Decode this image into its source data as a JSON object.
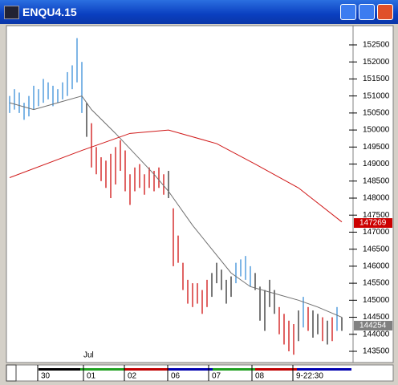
{
  "window_title": "ENQU4.15",
  "chart_data": {
    "type": "hilo",
    "ylim": [
      143170,
      153065
    ],
    "yticks": [
      143500,
      144000,
      144500,
      145000,
      145500,
      146000,
      146500,
      147000,
      147500,
      148000,
      148500,
      149000,
      149500,
      150000,
      150500,
      151000,
      151500,
      152000,
      152500
    ],
    "bars": {
      "high": [
        151000,
        151200,
        151100,
        150800,
        151000,
        151300,
        151200,
        151500,
        151400,
        151300,
        151200,
        151400,
        151700,
        151900,
        152700,
        152000,
        150800,
        150200,
        149500,
        149200,
        149100,
        149300,
        149500,
        149700,
        149400,
        148700,
        148900,
        149000,
        148700,
        148900,
        148800,
        148900,
        148700,
        148800,
        147700,
        146900,
        146100,
        145600,
        145500,
        145500,
        145300,
        145600,
        145800,
        146100,
        145900,
        145600,
        145700,
        146100,
        146200,
        146300,
        146000,
        145800,
        145400,
        145300,
        145600,
        145300,
        144800,
        144600,
        144400,
        144300,
        144700,
        145100,
        144800,
        144700,
        144600,
        144500,
        144400,
        144500,
        144800,
        144500
      ],
      "low": [
        150500,
        150600,
        150500,
        150300,
        150400,
        150600,
        150700,
        150800,
        150900,
        150700,
        150800,
        150900,
        151000,
        151200,
        151400,
        150500,
        149800,
        148900,
        148700,
        148500,
        148300,
        148000,
        148400,
        148800,
        148200,
        147800,
        148200,
        148300,
        148100,
        148300,
        148200,
        148300,
        148100,
        148000,
        146000,
        146100,
        145300,
        144900,
        144800,
        144900,
        144600,
        144800,
        145100,
        145500,
        145300,
        144900,
        145100,
        145500,
        145700,
        145600,
        145400,
        145300,
        144400,
        144100,
        144800,
        144600,
        144000,
        143700,
        143500,
        143400,
        143800,
        144200,
        144100,
        143900,
        144000,
        143800,
        143700,
        143800,
        144100,
        144100
      ],
      "colors": [
        "up",
        "up",
        "up",
        "up",
        "up",
        "up",
        "up",
        "up",
        "up",
        "up",
        "up",
        "up",
        "up",
        "up",
        "up",
        "up",
        "flat",
        "down",
        "down",
        "down",
        "down",
        "down",
        "down",
        "down",
        "down",
        "down",
        "down",
        "down",
        "down",
        "down",
        "down",
        "down",
        "down",
        "flat",
        "down",
        "down",
        "down",
        "down",
        "down",
        "down",
        "down",
        "down",
        "flat",
        "flat",
        "flat",
        "flat",
        "flat",
        "up",
        "up",
        "up",
        "up",
        "flat",
        "flat",
        "flat",
        "flat",
        "flat",
        "down",
        "down",
        "down",
        "down",
        "flat",
        "up",
        "down",
        "flat",
        "flat",
        "down",
        "flat",
        "down",
        "up",
        "flat"
      ]
    },
    "palette": {
      "up": "#3a8fd8",
      "down": "#d01010",
      "flat": "#303030"
    },
    "averages": [
      {
        "color": "#707070",
        "x": [
          0,
          5,
          10,
          15,
          17,
          22,
          26,
          30,
          33,
          38,
          42,
          46,
          50,
          55,
          60,
          64,
          69
        ],
        "values": [
          150800,
          150600,
          150800,
          151000,
          150600,
          149900,
          149300,
          148700,
          148200,
          147200,
          146500,
          145800,
          145400,
          145200,
          145000,
          144800,
          144500
        ]
      },
      {
        "color": "#d01818",
        "x": [
          0,
          15,
          25,
          33,
          43,
          51,
          60,
          69
        ],
        "values": [
          148600,
          149400,
          149900,
          150000,
          149600,
          149000,
          148300,
          147300
        ]
      }
    ],
    "markers": [
      {
        "value": 147269,
        "color": "#cc0000"
      },
      {
        "value": 144254,
        "color": "#808080"
      }
    ],
    "month_label": "Jul",
    "month_label_x": 16,
    "date_labels": [
      "30",
      "01",
      "02",
      "06",
      "07",
      "08",
      "9-22:30"
    ],
    "date_label_x": [
      6.5,
      16,
      24.5,
      33.5,
      42,
      51,
      59.5
    ]
  }
}
